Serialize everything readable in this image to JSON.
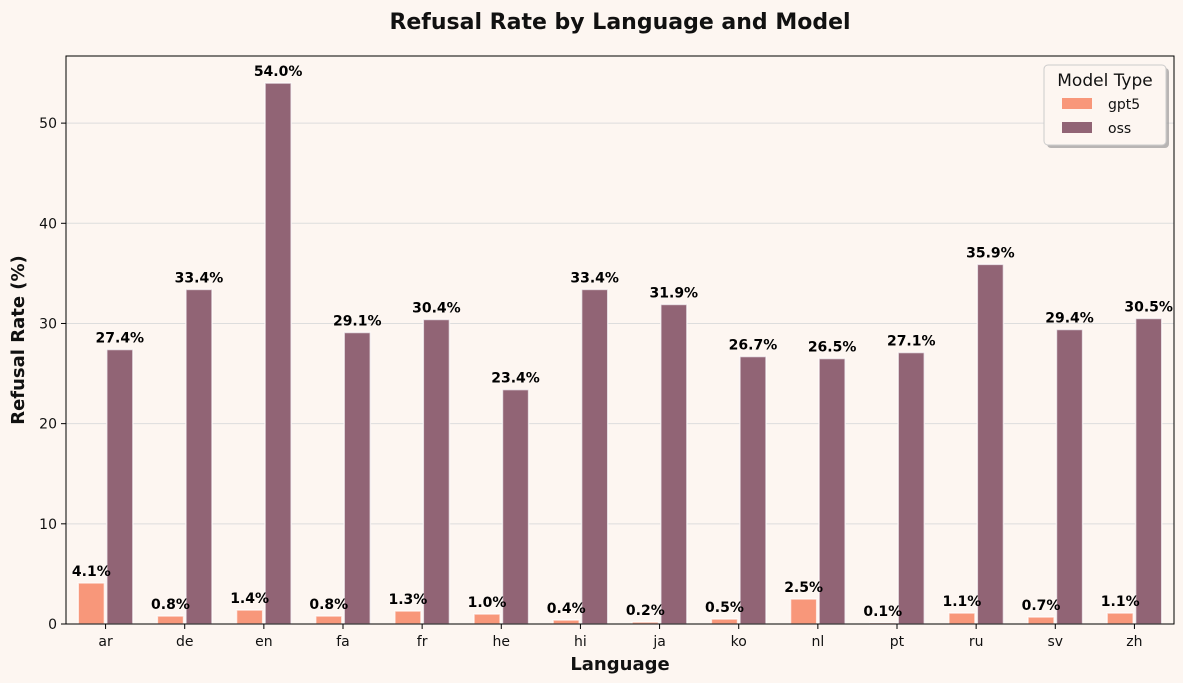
{
  "chart_data": {
    "type": "bar",
    "title": "Refusal Rate by Language and Model",
    "xlabel": "Language",
    "ylabel": "Refusal Rate (%)",
    "ylim": [
      0,
      56.7
    ],
    "yticks": [
      0,
      10,
      20,
      30,
      40,
      50
    ],
    "grid": true,
    "legend_position": "top-right",
    "legend_title": "Model Type",
    "categories": [
      "ar",
      "de",
      "en",
      "fa",
      "fr",
      "he",
      "hi",
      "ja",
      "ko",
      "nl",
      "pt",
      "ru",
      "sv",
      "zh"
    ],
    "series": [
      {
        "name": "gpt5",
        "color": "#f8977a",
        "values": [
          4.1,
          0.8,
          1.4,
          0.8,
          1.3,
          1.0,
          0.4,
          0.2,
          0.5,
          2.5,
          0.1,
          1.1,
          0.7,
          1.1
        ],
        "labels": [
          "4.1%",
          "0.8%",
          "1.4%",
          "0.8%",
          "1.3%",
          "1.0%",
          "0.4%",
          "0.2%",
          "0.5%",
          "2.5%",
          "0.1%",
          "1.1%",
          "0.7%",
          "1.1%"
        ]
      },
      {
        "name": "oss",
        "color": "#916475",
        "values": [
          27.4,
          33.4,
          54.0,
          29.1,
          30.4,
          23.4,
          33.4,
          31.9,
          26.7,
          26.5,
          27.1,
          35.9,
          29.4,
          30.5
        ],
        "labels": [
          "27.4%",
          "33.4%",
          "54.0%",
          "29.1%",
          "30.4%",
          "23.4%",
          "33.4%",
          "31.9%",
          "26.7%",
          "26.5%",
          "27.1%",
          "35.9%",
          "29.4%",
          "30.5%"
        ]
      }
    ]
  }
}
